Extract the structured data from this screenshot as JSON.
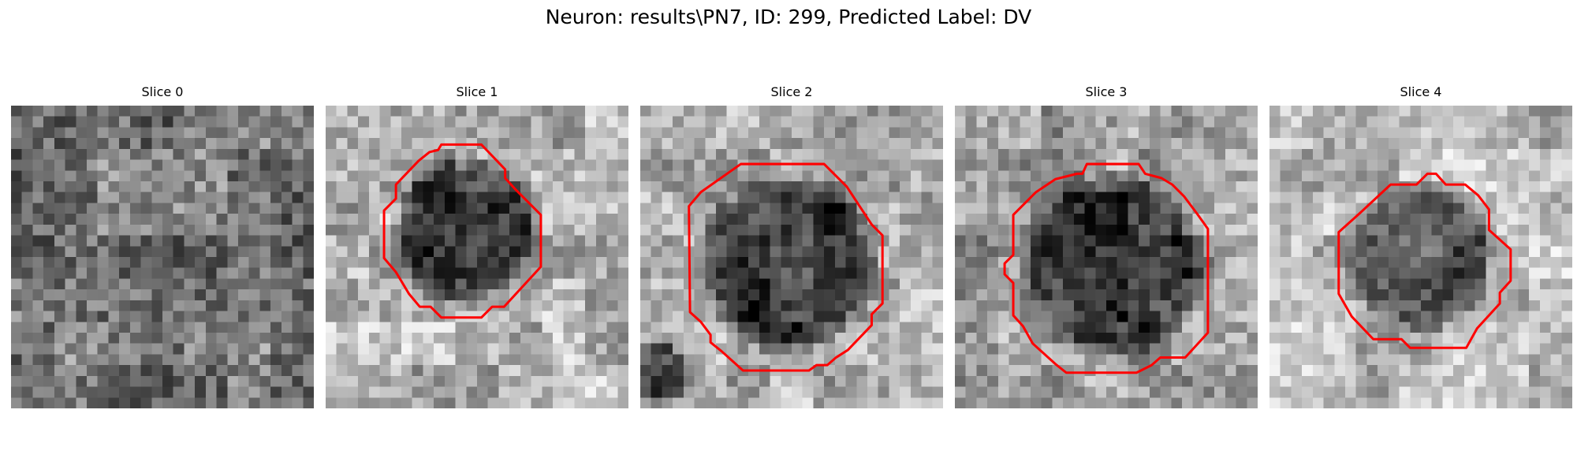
{
  "figure": {
    "title": "Neuron: results\\PN7, ID: 299, Predicted Label: DV",
    "colormap": "gray",
    "grid_size": 28,
    "contour_color": "#ff0000"
  },
  "panels": [
    {
      "title": "Slice 0",
      "has_contour": false
    },
    {
      "title": "Slice 1",
      "has_contour": true
    },
    {
      "title": "Slice 2",
      "has_contour": true
    },
    {
      "title": "Slice 3",
      "has_contour": true
    },
    {
      "title": "Slice 4",
      "has_contour": true
    }
  ]
}
